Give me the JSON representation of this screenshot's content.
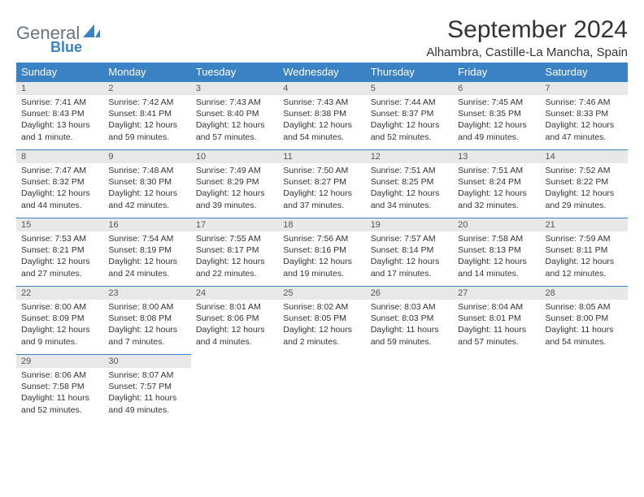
{
  "logo": {
    "text1": "General",
    "text2": "Blue"
  },
  "colors": {
    "header_bg": "#3b82c4",
    "header_fg": "#ffffff",
    "daynum_bg": "#e8e8e8",
    "rule": "#3b82c4",
    "text": "#333333"
  },
  "title": "September 2024",
  "location": "Alhambra, Castille-La Mancha, Spain",
  "weekdays": [
    "Sunday",
    "Monday",
    "Tuesday",
    "Wednesday",
    "Thursday",
    "Friday",
    "Saturday"
  ],
  "days": [
    {
      "n": "1",
      "sunrise": "7:41 AM",
      "sunset": "8:43 PM",
      "daylight": "13 hours and 1 minute."
    },
    {
      "n": "2",
      "sunrise": "7:42 AM",
      "sunset": "8:41 PM",
      "daylight": "12 hours and 59 minutes."
    },
    {
      "n": "3",
      "sunrise": "7:43 AM",
      "sunset": "8:40 PM",
      "daylight": "12 hours and 57 minutes."
    },
    {
      "n": "4",
      "sunrise": "7:43 AM",
      "sunset": "8:38 PM",
      "daylight": "12 hours and 54 minutes."
    },
    {
      "n": "5",
      "sunrise": "7:44 AM",
      "sunset": "8:37 PM",
      "daylight": "12 hours and 52 minutes."
    },
    {
      "n": "6",
      "sunrise": "7:45 AM",
      "sunset": "8:35 PM",
      "daylight": "12 hours and 49 minutes."
    },
    {
      "n": "7",
      "sunrise": "7:46 AM",
      "sunset": "8:33 PM",
      "daylight": "12 hours and 47 minutes."
    },
    {
      "n": "8",
      "sunrise": "7:47 AM",
      "sunset": "8:32 PM",
      "daylight": "12 hours and 44 minutes."
    },
    {
      "n": "9",
      "sunrise": "7:48 AM",
      "sunset": "8:30 PM",
      "daylight": "12 hours and 42 minutes."
    },
    {
      "n": "10",
      "sunrise": "7:49 AM",
      "sunset": "8:29 PM",
      "daylight": "12 hours and 39 minutes."
    },
    {
      "n": "11",
      "sunrise": "7:50 AM",
      "sunset": "8:27 PM",
      "daylight": "12 hours and 37 minutes."
    },
    {
      "n": "12",
      "sunrise": "7:51 AM",
      "sunset": "8:25 PM",
      "daylight": "12 hours and 34 minutes."
    },
    {
      "n": "13",
      "sunrise": "7:51 AM",
      "sunset": "8:24 PM",
      "daylight": "12 hours and 32 minutes."
    },
    {
      "n": "14",
      "sunrise": "7:52 AM",
      "sunset": "8:22 PM",
      "daylight": "12 hours and 29 minutes."
    },
    {
      "n": "15",
      "sunrise": "7:53 AM",
      "sunset": "8:21 PM",
      "daylight": "12 hours and 27 minutes."
    },
    {
      "n": "16",
      "sunrise": "7:54 AM",
      "sunset": "8:19 PM",
      "daylight": "12 hours and 24 minutes."
    },
    {
      "n": "17",
      "sunrise": "7:55 AM",
      "sunset": "8:17 PM",
      "daylight": "12 hours and 22 minutes."
    },
    {
      "n": "18",
      "sunrise": "7:56 AM",
      "sunset": "8:16 PM",
      "daylight": "12 hours and 19 minutes."
    },
    {
      "n": "19",
      "sunrise": "7:57 AM",
      "sunset": "8:14 PM",
      "daylight": "12 hours and 17 minutes."
    },
    {
      "n": "20",
      "sunrise": "7:58 AM",
      "sunset": "8:13 PM",
      "daylight": "12 hours and 14 minutes."
    },
    {
      "n": "21",
      "sunrise": "7:59 AM",
      "sunset": "8:11 PM",
      "daylight": "12 hours and 12 minutes."
    },
    {
      "n": "22",
      "sunrise": "8:00 AM",
      "sunset": "8:09 PM",
      "daylight": "12 hours and 9 minutes."
    },
    {
      "n": "23",
      "sunrise": "8:00 AM",
      "sunset": "8:08 PM",
      "daylight": "12 hours and 7 minutes."
    },
    {
      "n": "24",
      "sunrise": "8:01 AM",
      "sunset": "8:06 PM",
      "daylight": "12 hours and 4 minutes."
    },
    {
      "n": "25",
      "sunrise": "8:02 AM",
      "sunset": "8:05 PM",
      "daylight": "12 hours and 2 minutes."
    },
    {
      "n": "26",
      "sunrise": "8:03 AM",
      "sunset": "8:03 PM",
      "daylight": "11 hours and 59 minutes."
    },
    {
      "n": "27",
      "sunrise": "8:04 AM",
      "sunset": "8:01 PM",
      "daylight": "11 hours and 57 minutes."
    },
    {
      "n": "28",
      "sunrise": "8:05 AM",
      "sunset": "8:00 PM",
      "daylight": "11 hours and 54 minutes."
    },
    {
      "n": "29",
      "sunrise": "8:06 AM",
      "sunset": "7:58 PM",
      "daylight": "11 hours and 52 minutes."
    },
    {
      "n": "30",
      "sunrise": "8:07 AM",
      "sunset": "7:57 PM",
      "daylight": "11 hours and 49 minutes."
    }
  ],
  "labels": {
    "sunrise": "Sunrise: ",
    "sunset": "Sunset: ",
    "daylight": "Daylight: "
  },
  "start_weekday": 0,
  "total_cells": 35
}
